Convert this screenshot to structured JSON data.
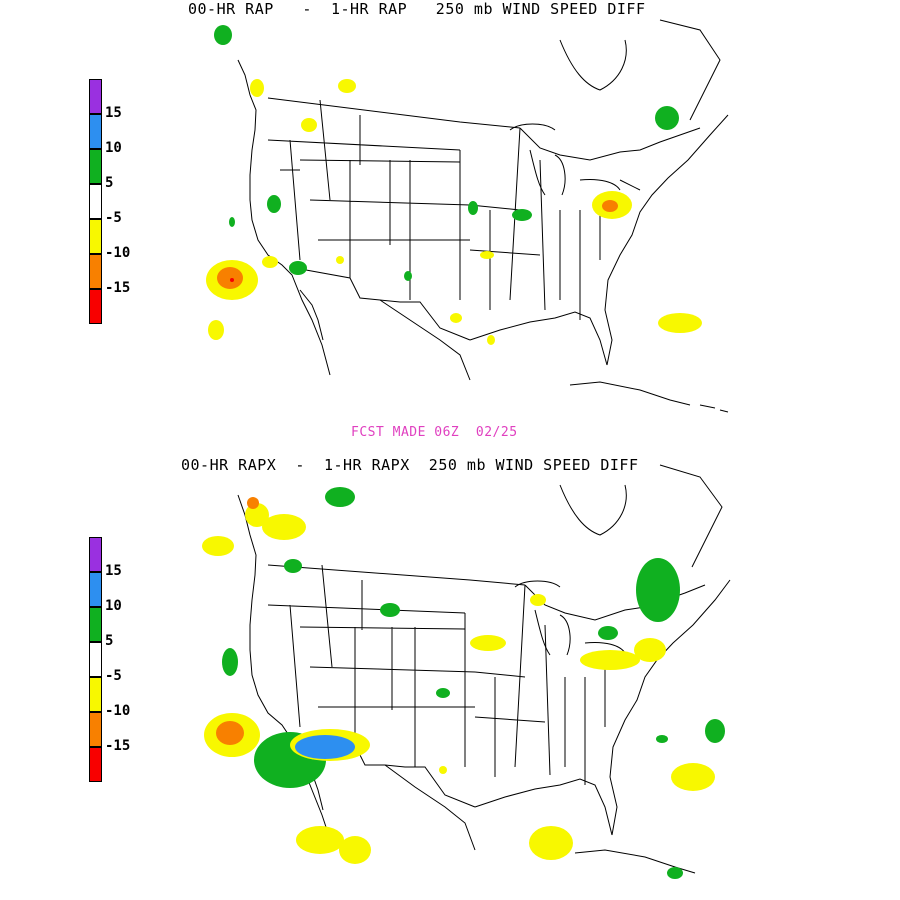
{
  "panels": [
    {
      "title": "00-HR RAP   -  1-HR RAP   250 mb WIND SPEED DIFF"
    },
    {
      "title": "00-HR RAPX  -  1-HR RAPX  250 mb WIND SPEED DIFF"
    }
  ],
  "fcst_label": "FCST MADE 06Z  02/25",
  "legend": {
    "colors": [
      "#9a30e0",
      "#2d8ff0",
      "#10b020",
      "#ffffff",
      "#f8f800",
      "#f88000",
      "#f80000"
    ],
    "labels": [
      "15",
      "10",
      "5",
      "-5",
      "-10",
      "-15"
    ]
  }
}
